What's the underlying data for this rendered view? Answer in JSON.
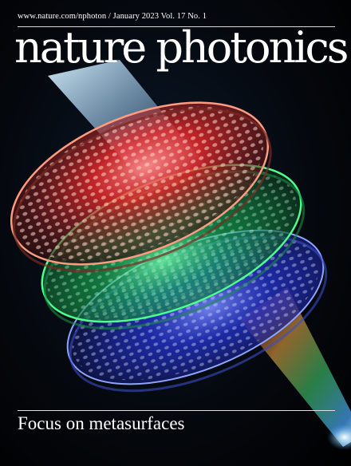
{
  "cover": {
    "header_line": "www.nature.com/nphoton / January 2023 Vol. 17 No. 1",
    "masthead": "nature photonics",
    "headline": "Focus on metasurfaces"
  },
  "colors": {
    "background": "#03070c",
    "red_disc": "#ff3b30",
    "green_disc": "#2bd96a",
    "blue_disc": "#2f4dff",
    "beam": "#bfe8ff"
  }
}
